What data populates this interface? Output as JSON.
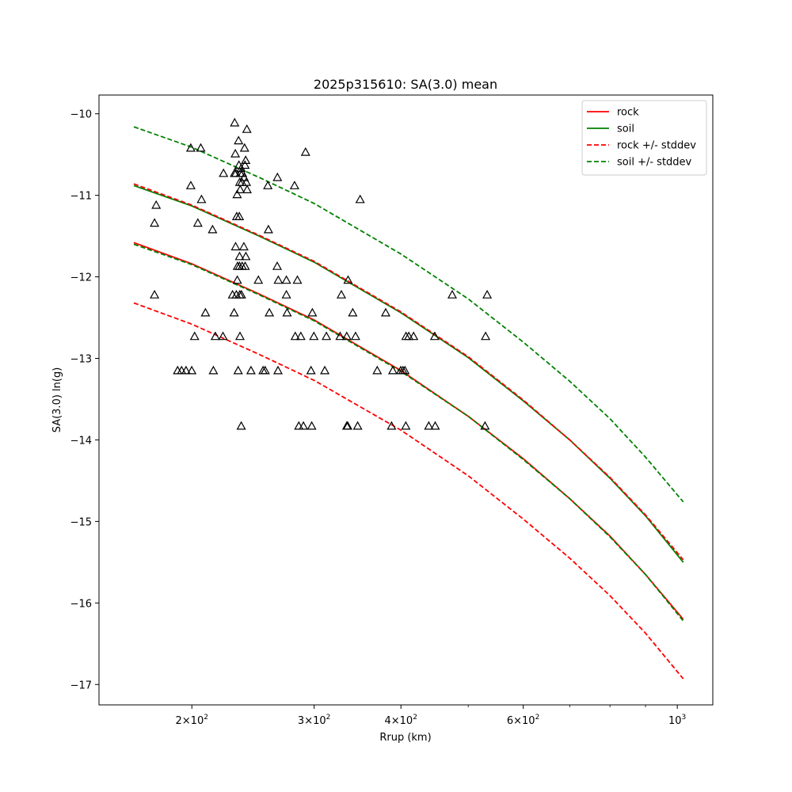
{
  "chart_data": {
    "type": "scatter",
    "title": "2025p315610: SA(3.0) mean",
    "xlabel": "Rrup (km)",
    "ylabel": "SA(3.0) ln(g)",
    "x_scale": "log",
    "xlim": [
      147,
      1125
    ],
    "ylim": [
      -17.25,
      -9.77
    ],
    "x_major_ticks": [
      {
        "value": 200,
        "base": "2",
        "sup": "2"
      },
      {
        "value": 300,
        "base": "3",
        "sup": "2"
      },
      {
        "value": 400,
        "base": "4",
        "sup": "2"
      },
      {
        "value": 600,
        "base": "6",
        "sup": "2"
      },
      {
        "value": 1000,
        "base": "10",
        "sup": "3"
      }
    ],
    "x_times_sign": "×",
    "x_minor_ticks": [
      500,
      700,
      800,
      900
    ],
    "y_ticks": [
      -17,
      -16,
      -15,
      -14,
      -13,
      -12,
      -11,
      -10
    ],
    "grid": false,
    "legend_position": "top-right",
    "series": [
      {
        "name": "rock",
        "kind": "line",
        "color": "#ff0000",
        "dash": "solid",
        "x": [
          165,
          200,
          250,
          300,
          400,
          500,
          600,
          700,
          800,
          900,
          1020
        ],
        "y": [
          -11.58,
          -11.84,
          -12.21,
          -12.53,
          -13.15,
          -13.71,
          -14.23,
          -14.72,
          -15.18,
          -15.65,
          -16.2
        ]
      },
      {
        "name": "soil",
        "kind": "line",
        "color": "#008000",
        "dash": "solid",
        "x": [
          165,
          200,
          250,
          300,
          400,
          500,
          600,
          700,
          800,
          900,
          1020
        ],
        "y": [
          -10.88,
          -11.13,
          -11.5,
          -11.82,
          -12.44,
          -12.99,
          -13.52,
          -14.0,
          -14.47,
          -14.93,
          -15.5
        ]
      },
      {
        "name": "rock +/- stddev",
        "kind": "line",
        "color": "#ff0000",
        "dash": "dashed",
        "x": [
          165,
          200,
          250,
          300,
          400,
          500,
          600,
          700,
          800,
          900,
          1020
        ],
        "y": [
          -10.86,
          -11.12,
          -11.49,
          -11.81,
          -12.43,
          -12.98,
          -13.51,
          -14.0,
          -14.46,
          -14.92,
          -15.47
        ]
      },
      {
        "name": "",
        "kind": "line",
        "color": "#ff0000",
        "dash": "dashed",
        "x": [
          165,
          200,
          250,
          300,
          400,
          500,
          600,
          700,
          800,
          900,
          1020
        ],
        "y": [
          -12.32,
          -12.58,
          -12.95,
          -13.27,
          -13.88,
          -14.44,
          -14.97,
          -15.45,
          -15.91,
          -16.37,
          -16.93
        ]
      },
      {
        "name": "soil +/- stddev",
        "kind": "line",
        "color": "#008000",
        "dash": "dashed",
        "x": [
          165,
          200,
          250,
          300,
          400,
          500,
          600,
          700,
          800,
          900,
          1020
        ],
        "y": [
          -10.16,
          -10.41,
          -10.78,
          -11.1,
          -11.72,
          -12.27,
          -12.8,
          -13.28,
          -13.74,
          -14.21,
          -14.76
        ]
      },
      {
        "name": "",
        "kind": "line",
        "color": "#008000",
        "dash": "dashed",
        "x": [
          165,
          200,
          250,
          300,
          400,
          500,
          600,
          700,
          800,
          900,
          1020
        ],
        "y": [
          -11.6,
          -11.85,
          -12.22,
          -12.54,
          -13.16,
          -13.71,
          -14.24,
          -14.72,
          -15.19,
          -15.65,
          -16.22
        ]
      }
    ],
    "observations": {
      "marker": "open-triangle",
      "color": "#000000",
      "points": [
        [
          230.5,
          -10.11
        ],
        [
          240,
          -10.19
        ],
        [
          233.5,
          -10.33
        ],
        [
          199.3,
          -10.42
        ],
        [
          206,
          -10.42
        ],
        [
          231,
          -10.49
        ],
        [
          238.2,
          -10.42
        ],
        [
          239.1,
          -10.57
        ],
        [
          238.5,
          -10.63
        ],
        [
          235.5,
          -10.67
        ],
        [
          234.9,
          -10.73
        ],
        [
          233.8,
          -10.63
        ],
        [
          231.4,
          -10.73
        ],
        [
          230.4,
          -10.73
        ],
        [
          222.1,
          -10.73
        ],
        [
          236.5,
          -10.73
        ],
        [
          237.8,
          -10.78
        ],
        [
          239.6,
          -10.84
        ],
        [
          236.1,
          -10.84
        ],
        [
          234.4,
          -10.84
        ],
        [
          234.8,
          -10.93
        ],
        [
          240.2,
          -10.93
        ],
        [
          232.4,
          -10.99
        ],
        [
          291.6,
          -10.47
        ],
        [
          265.6,
          -10.78
        ],
        [
          257.3,
          -10.88
        ],
        [
          281.1,
          -10.88
        ],
        [
          199.3,
          -10.88
        ],
        [
          206.5,
          -11.05
        ],
        [
          349.4,
          -11.05
        ],
        [
          177.7,
          -11.12
        ],
        [
          204,
          -11.34
        ],
        [
          176.7,
          -11.34
        ],
        [
          232.1,
          -11.26
        ],
        [
          234.1,
          -11.26
        ],
        [
          214.2,
          -11.42
        ],
        [
          257.8,
          -11.42
        ],
        [
          231.2,
          -11.63
        ],
        [
          237.6,
          -11.63
        ],
        [
          234.3,
          -11.75
        ],
        [
          239.2,
          -11.75
        ],
        [
          232.7,
          -11.87
        ],
        [
          234.2,
          -11.87
        ],
        [
          236.3,
          -11.87
        ],
        [
          238.6,
          -11.87
        ],
        [
          265.4,
          -11.87
        ],
        [
          232.5,
          -12.04
        ],
        [
          249.3,
          -12.04
        ],
        [
          266.4,
          -12.04
        ],
        [
          273.6,
          -12.04
        ],
        [
          283.8,
          -12.04
        ],
        [
          335.7,
          -12.04
        ],
        [
          176.7,
          -12.22
        ],
        [
          228.9,
          -12.22
        ],
        [
          231.8,
          -12.22
        ],
        [
          234.4,
          -12.22
        ],
        [
          235.7,
          -12.22
        ],
        [
          273.6,
          -12.22
        ],
        [
          328.3,
          -12.22
        ],
        [
          474.2,
          -12.22
        ],
        [
          532.4,
          -12.22
        ],
        [
          209.2,
          -12.44
        ],
        [
          230.1,
          -12.44
        ],
        [
          258.6,
          -12.44
        ],
        [
          274.3,
          -12.44
        ],
        [
          298.2,
          -12.44
        ],
        [
          341,
          -12.44
        ],
        [
          380.3,
          -12.44
        ],
        [
          201.8,
          -12.73
        ],
        [
          216.2,
          -12.73
        ],
        [
          221.7,
          -12.73
        ],
        [
          234.6,
          -12.73
        ],
        [
          281.8,
          -12.73
        ],
        [
          287,
          -12.73
        ],
        [
          299.7,
          -12.73
        ],
        [
          312.4,
          -12.73
        ],
        [
          326.9,
          -12.73
        ],
        [
          334.2,
          -12.73
        ],
        [
          344.1,
          -12.73
        ],
        [
          406.8,
          -12.73
        ],
        [
          410.5,
          -12.73
        ],
        [
          417.1,
          -12.73
        ],
        [
          447.4,
          -12.73
        ],
        [
          529.6,
          -12.73
        ],
        [
          190.8,
          -13.15
        ],
        [
          193.3,
          -13.15
        ],
        [
          196.2,
          -13.15
        ],
        [
          199.9,
          -13.15
        ],
        [
          214.8,
          -13.15
        ],
        [
          233.2,
          -13.15
        ],
        [
          243.3,
          -13.15
        ],
        [
          253.3,
          -13.15
        ],
        [
          255,
          -13.15
        ],
        [
          266.1,
          -13.15
        ],
        [
          296.9,
          -13.15
        ],
        [
          310.8,
          -13.15
        ],
        [
          369.8,
          -13.15
        ],
        [
          389.4,
          -13.15
        ],
        [
          399.8,
          -13.15
        ],
        [
          402.7,
          -13.15
        ],
        [
          405.4,
          -13.15
        ],
        [
          235.6,
          -13.83
        ],
        [
          285.1,
          -13.83
        ],
        [
          289.5,
          -13.83
        ],
        [
          297.6,
          -13.83
        ],
        [
          334.3,
          -13.83
        ],
        [
          335.3,
          -13.83
        ],
        [
          346.6,
          -13.83
        ],
        [
          387.8,
          -13.83
        ],
        [
          406.6,
          -13.83
        ],
        [
          438.7,
          -13.83
        ],
        [
          448.1,
          -13.83
        ],
        [
          528.6,
          -13.83
        ]
      ]
    }
  }
}
